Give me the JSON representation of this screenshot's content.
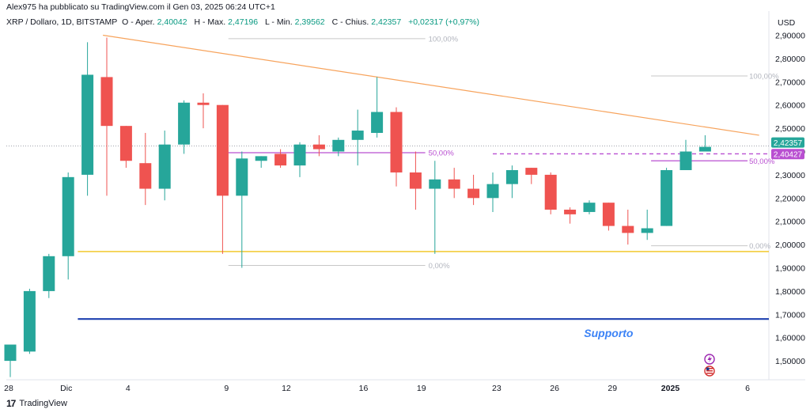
{
  "header": {
    "published_by": "Alex975 ha pubblicato su TradingView.com il Gen 03, 2025 06:24 UTC+1"
  },
  "legend": {
    "symbol": "XRP / Dollaro, 1D, BITSTAMP",
    "open_label": "O - Aper.",
    "open": "2,40042",
    "high_label": "H - Max.",
    "high": "2,47196",
    "low_label": "L - Min.",
    "low": "2,39562",
    "close_label": "C - Chius.",
    "close": "2,42357",
    "change": "+0,02317 (+0,97%)"
  },
  "axis": {
    "currency": "USD"
  },
  "footer": {
    "logo": "17",
    "brand": "TradingView"
  },
  "colors": {
    "up": "#26a69a",
    "down": "#ef5350",
    "trendline": "#f7a35c",
    "support_yellow": "#f0c419",
    "support_blue": "#1e40af",
    "fib_purple": "#b94fd1",
    "fib_gray": "#c7c7c7",
    "label_blue": "#3b82f6"
  },
  "chart_data": {
    "type": "candlestick",
    "y_ticks": [
      "2,90000",
      "2,80000",
      "2,70000",
      "2,60000",
      "2,50000",
      "2,40000",
      "2,30000",
      "2,20000",
      "2,10000",
      "2,00000",
      "1,90000",
      "1,80000",
      "1,70000",
      "1,60000",
      "1,50000"
    ],
    "y_tick_values": [
      2.9,
      2.8,
      2.7,
      2.6,
      2.5,
      2.4,
      2.3,
      2.2,
      2.1,
      2.0,
      1.9,
      1.8,
      1.7,
      1.6,
      1.5
    ],
    "ylim": [
      1.4,
      2.96
    ],
    "x_ticks": [
      {
        "label": "28",
        "i": -0.3
      },
      {
        "label": "Dic",
        "i": 2.9
      },
      {
        "label": "4",
        "i": 6.1
      },
      {
        "label": "9",
        "i": 11.2
      },
      {
        "label": "12",
        "i": 14.3
      },
      {
        "label": "16",
        "i": 18.3
      },
      {
        "label": "19",
        "i": 21.3
      },
      {
        "label": "23",
        "i": 25.2
      },
      {
        "label": "26",
        "i": 28.2
      },
      {
        "label": "29",
        "i": 31.2
      },
      {
        "label": "2025",
        "i": 34.2
      },
      {
        "label": "6",
        "i": 38.2
      }
    ],
    "candles": [
      {
        "o": 1.5,
        "h": 1.56,
        "l": 1.43,
        "c": 1.57
      },
      {
        "o": 1.54,
        "h": 1.81,
        "l": 1.53,
        "c": 1.8
      },
      {
        "o": 1.8,
        "h": 1.96,
        "l": 1.77,
        "c": 1.95
      },
      {
        "o": 1.95,
        "h": 2.31,
        "l": 1.85,
        "c": 2.29
      },
      {
        "o": 2.3,
        "h": 2.87,
        "l": 2.21,
        "c": 2.73
      },
      {
        "o": 2.72,
        "h": 2.89,
        "l": 2.21,
        "c": 2.51
      },
      {
        "o": 2.51,
        "h": 2.51,
        "l": 2.33,
        "c": 2.36
      },
      {
        "o": 2.35,
        "h": 2.48,
        "l": 2.17,
        "c": 2.24
      },
      {
        "o": 2.24,
        "h": 2.49,
        "l": 2.19,
        "c": 2.43
      },
      {
        "o": 2.43,
        "h": 2.62,
        "l": 2.39,
        "c": 2.61
      },
      {
        "o": 2.61,
        "h": 2.65,
        "l": 2.5,
        "c": 2.6
      },
      {
        "o": 2.6,
        "h": 2.6,
        "l": 1.96,
        "c": 2.21
      },
      {
        "o": 2.21,
        "h": 2.4,
        "l": 1.9,
        "c": 2.37
      },
      {
        "o": 2.36,
        "h": 2.38,
        "l": 2.33,
        "c": 2.38
      },
      {
        "o": 2.39,
        "h": 2.41,
        "l": 2.33,
        "c": 2.34
      },
      {
        "o": 2.34,
        "h": 2.44,
        "l": 2.29,
        "c": 2.43
      },
      {
        "o": 2.43,
        "h": 2.47,
        "l": 2.38,
        "c": 2.41
      },
      {
        "o": 2.4,
        "h": 2.46,
        "l": 2.38,
        "c": 2.45
      },
      {
        "o": 2.45,
        "h": 2.58,
        "l": 2.34,
        "c": 2.49
      },
      {
        "o": 2.48,
        "h": 2.72,
        "l": 2.46,
        "c": 2.57
      },
      {
        "o": 2.57,
        "h": 2.59,
        "l": 2.25,
        "c": 2.31
      },
      {
        "o": 2.31,
        "h": 2.4,
        "l": 2.15,
        "c": 2.24
      },
      {
        "o": 2.24,
        "h": 2.36,
        "l": 1.96,
        "c": 2.28
      },
      {
        "o": 2.28,
        "h": 2.33,
        "l": 2.2,
        "c": 2.24
      },
      {
        "o": 2.24,
        "h": 2.3,
        "l": 2.17,
        "c": 2.2
      },
      {
        "o": 2.2,
        "h": 2.31,
        "l": 2.14,
        "c": 2.26
      },
      {
        "o": 2.26,
        "h": 2.34,
        "l": 2.2,
        "c": 2.32
      },
      {
        "o": 2.33,
        "h": 2.33,
        "l": 2.26,
        "c": 2.3
      },
      {
        "o": 2.3,
        "h": 2.31,
        "l": 2.13,
        "c": 2.15
      },
      {
        "o": 2.15,
        "h": 2.16,
        "l": 2.09,
        "c": 2.13
      },
      {
        "o": 2.14,
        "h": 2.19,
        "l": 2.13,
        "c": 2.18
      },
      {
        "o": 2.18,
        "h": 2.18,
        "l": 2.06,
        "c": 2.08
      },
      {
        "o": 2.08,
        "h": 2.15,
        "l": 2.0,
        "c": 2.05
      },
      {
        "o": 2.05,
        "h": 2.15,
        "l": 2.02,
        "c": 2.07
      },
      {
        "o": 2.08,
        "h": 2.33,
        "l": 2.08,
        "c": 2.32
      },
      {
        "o": 2.32,
        "h": 2.45,
        "l": 2.32,
        "c": 2.4
      },
      {
        "o": 2.4,
        "h": 2.47,
        "l": 2.4,
        "c": 2.42
      }
    ],
    "trendline": {
      "from": {
        "i": 4.8,
        "v": 2.9
      },
      "to": {
        "i": 38.8,
        "v": 2.47
      }
    },
    "hlines": [
      {
        "name": "support-yellow-line",
        "v": 1.97,
        "from_i": 3.5,
        "to_i": 40,
        "color": "support_yellow",
        "width": 1.4
      },
      {
        "name": "support-blue-line",
        "v": 1.68,
        "from_i": 3.5,
        "to_i": 40,
        "color": "support_blue",
        "width": 2.2
      }
    ],
    "fib_left": {
      "from_i": 11.3,
      "to_i": 21.5,
      "levels": [
        {
          "v": 2.885,
          "label": "100,00%",
          "color": "fib_gray"
        },
        {
          "v": 2.395,
          "label": "50,00%",
          "color": "fib_purple"
        },
        {
          "v": 1.91,
          "label": "0,00%",
          "color": "fib_gray"
        }
      ]
    },
    "fib_right": {
      "from_i": 33.2,
      "to_i": 38.2,
      "levels": [
        {
          "v": 2.725,
          "label": "100,00%",
          "color": "fib_gray"
        },
        {
          "v": 2.36,
          "label": "50,00%",
          "color": "fib_purple"
        },
        {
          "v": 1.995,
          "label": "0,00%",
          "color": "fib_gray"
        }
      ]
    },
    "dashed_level": {
      "v": 2.39,
      "from_i": 25,
      "to_i": 40,
      "color": "fib_purple"
    },
    "dotted_price": {
      "v": 2.424
    },
    "price_tags": [
      {
        "name": "last-price-tag",
        "v": 2.42357,
        "label": "2,42357",
        "color": "up"
      },
      {
        "name": "fib-level-tag",
        "v": 2.40427,
        "label": "2,40427",
        "color": "fib_purple"
      }
    ],
    "annotation": {
      "text": "Supporto",
      "i": 31,
      "v": 1.62
    }
  }
}
